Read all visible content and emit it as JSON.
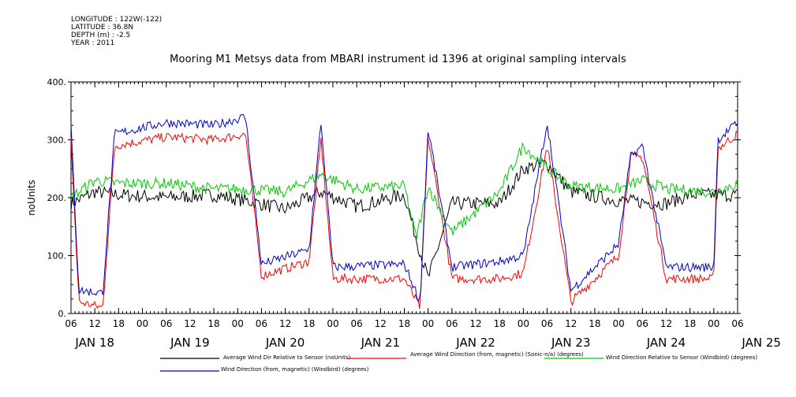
{
  "header": {
    "longitude": "LONGITUDE : 122W(-122)",
    "latitude": "LATITUDE : 36.8N",
    "depth": "DEPTH (m) : -2.5",
    "year": "YEAR : 2011"
  },
  "chart_data": {
    "type": "line",
    "title": "Mooring M1 Metsys data from MBARI instrument id 1396 at original sampling intervals",
    "ylabel": "noUnits",
    "xlabel": "",
    "ylim": [
      0,
      400
    ],
    "yticks": [
      "0.",
      "100.",
      "200.",
      "300.",
      "400."
    ],
    "xlim_hours": [
      0,
      168
    ],
    "hour_ticks": [
      "06",
      "12",
      "18",
      "00",
      "06",
      "12",
      "18",
      "00",
      "06",
      "12",
      "18",
      "00",
      "06",
      "12",
      "18",
      "00",
      "06",
      "12",
      "18",
      "00",
      "06",
      "12",
      "18",
      "00",
      "06",
      "12",
      "18",
      "00",
      "06"
    ],
    "day_labels": [
      "JAN 18",
      "JAN 19",
      "JAN 20",
      "JAN 21",
      "JAN 22",
      "JAN 23",
      "JAN 24",
      "JAN 25"
    ],
    "grid": false,
    "legend_position": "bottom",
    "series": [
      {
        "name": "Average Wind Dir Relative to Sensor (noUnits)",
        "color": "#000000",
        "base": [
          [
            0,
            190
          ],
          [
            6,
            210
          ],
          [
            12,
            205
          ],
          [
            24,
            200
          ],
          [
            36,
            205
          ],
          [
            44,
            195
          ],
          [
            54,
            180
          ],
          [
            63,
            210
          ],
          [
            72,
            185
          ],
          [
            84,
            205
          ],
          [
            87,
            130
          ],
          [
            90,
            60
          ],
          [
            96,
            190
          ],
          [
            108,
            190
          ],
          [
            114,
            250
          ],
          [
            120,
            260
          ],
          [
            126,
            210
          ],
          [
            138,
            195
          ],
          [
            150,
            190
          ],
          [
            156,
            205
          ],
          [
            168,
            205
          ]
        ]
      },
      {
        "name": "Average Wind Direction (from, magnetic) (Sonic-n/a) (degrees)",
        "color": "#ff0000",
        "base": [
          [
            0,
            300
          ],
          [
            2,
            20
          ],
          [
            8,
            10
          ],
          [
            11,
            290
          ],
          [
            24,
            305
          ],
          [
            36,
            300
          ],
          [
            44,
            310
          ],
          [
            48,
            65
          ],
          [
            60,
            90
          ],
          [
            63,
            300
          ],
          [
            66,
            60
          ],
          [
            84,
            60
          ],
          [
            88,
            10
          ],
          [
            90,
            305
          ],
          [
            96,
            60
          ],
          [
            108,
            60
          ],
          [
            114,
            70
          ],
          [
            120,
            290
          ],
          [
            126,
            20
          ],
          [
            138,
            100
          ],
          [
            141,
            270
          ],
          [
            144,
            270
          ],
          [
            150,
            60
          ],
          [
            162,
            60
          ],
          [
            163,
            285
          ],
          [
            168,
            310
          ]
        ]
      },
      {
        "name": "Wind Direction Relative to Sensor (Windbird) (degrees)",
        "color": "#00cc00",
        "base": [
          [
            0,
            200
          ],
          [
            6,
            230
          ],
          [
            12,
            225
          ],
          [
            24,
            225
          ],
          [
            36,
            215
          ],
          [
            44,
            215
          ],
          [
            54,
            210
          ],
          [
            63,
            240
          ],
          [
            72,
            215
          ],
          [
            84,
            220
          ],
          [
            87,
            130
          ],
          [
            90,
            220
          ],
          [
            96,
            140
          ],
          [
            108,
            210
          ],
          [
            114,
            290
          ],
          [
            120,
            250
          ],
          [
            126,
            220
          ],
          [
            138,
            215
          ],
          [
            144,
            230
          ],
          [
            150,
            215
          ],
          [
            162,
            210
          ],
          [
            168,
            225
          ]
        ]
      },
      {
        "name": "Wind Direction (from, magnetic) (Windbird) (degrees)",
        "color": "#0000cc",
        "base": [
          [
            0,
            320
          ],
          [
            2,
            40
          ],
          [
            8,
            35
          ],
          [
            11,
            310
          ],
          [
            24,
            330
          ],
          [
            36,
            325
          ],
          [
            44,
            340
          ],
          [
            48,
            85
          ],
          [
            60,
            110
          ],
          [
            63,
            330
          ],
          [
            66,
            80
          ],
          [
            84,
            85
          ],
          [
            88,
            20
          ],
          [
            90,
            320
          ],
          [
            96,
            80
          ],
          [
            108,
            90
          ],
          [
            114,
            100
          ],
          [
            120,
            330
          ],
          [
            126,
            40
          ],
          [
            138,
            120
          ],
          [
            141,
            270
          ],
          [
            144,
            290
          ],
          [
            150,
            80
          ],
          [
            162,
            80
          ],
          [
            163,
            300
          ],
          [
            168,
            330
          ]
        ]
      }
    ]
  }
}
